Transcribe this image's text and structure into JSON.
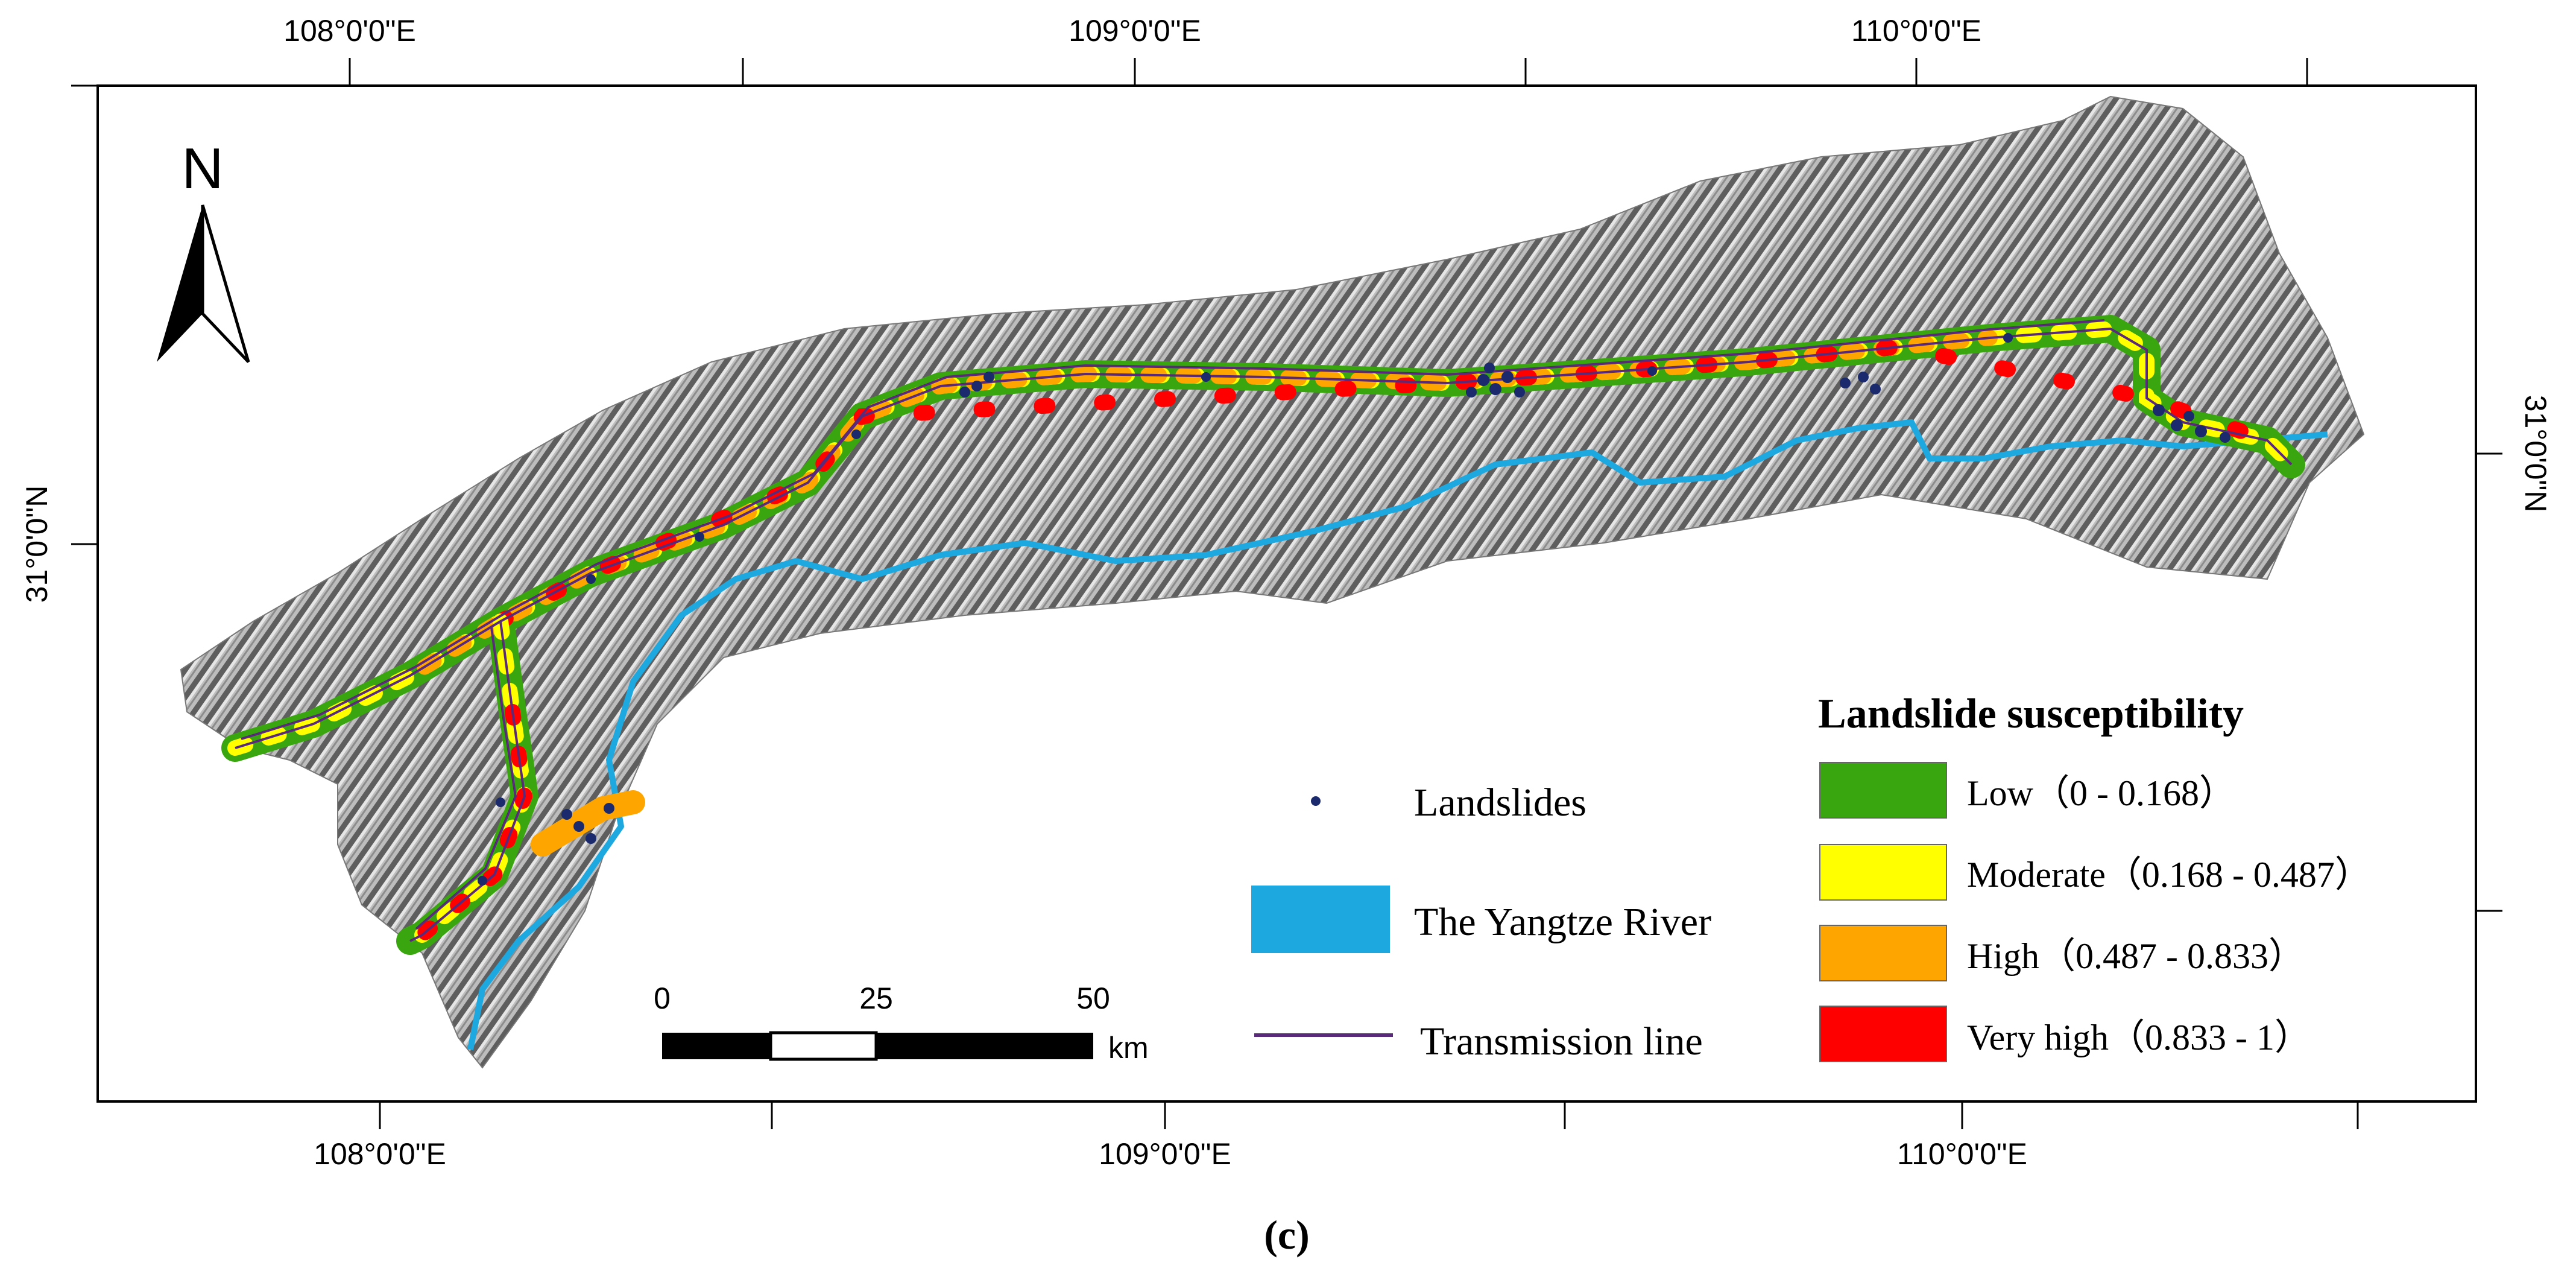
{
  "graticule": {
    "top_labels": [
      "108°0'0\"E",
      "109°0'0\"E",
      "110°0'0\"E"
    ],
    "bottom_labels": [
      "108°0'0\"E",
      "109°0'0\"E",
      "110°0'0\"E"
    ],
    "left_label": "31°0'0\"N",
    "right_label": "31°0'0\"N"
  },
  "north_arrow": {
    "label": "N"
  },
  "legend": {
    "title": "Landslide susceptibility",
    "classes": [
      {
        "label": "Low（0 - 0.168）",
        "color": "#3aa60f"
      },
      {
        "label": "Moderate（0.168 - 0.487）",
        "color": "#ffff00"
      },
      {
        "label": "High（0.487 - 0.833）",
        "color": "#ffa500"
      },
      {
        "label": "Very high（0.833 - 1）",
        "color": "#ff0000"
      }
    ],
    "landslides_label": "Landslides",
    "landslides_color": "#1a2a6c",
    "river_label": "The Yangtze River",
    "river_color": "#1ea8e0",
    "line_label": "Transmission line",
    "line_color": "#5a2a7a"
  },
  "scale_bar": {
    "ticks": [
      "0",
      "25",
      "50"
    ],
    "unit": "km"
  },
  "caption": "(c)"
}
